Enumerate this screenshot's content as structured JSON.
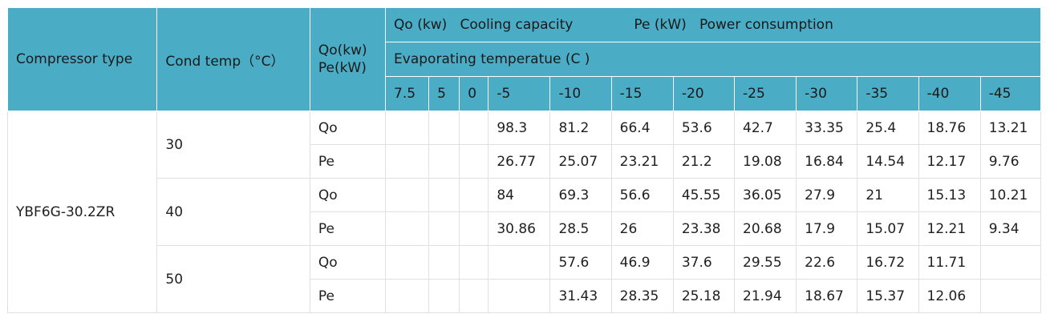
{
  "headers": {
    "compressor_type": "Compressor type",
    "cond_temp": "Cond temp（°C）",
    "qo_label": "Qo(kw)",
    "pe_label": "Pe(kW)",
    "legend_qo": "Qo (kw)   Cooling capacity",
    "legend_pe": "Pe (kW)   Power consumption",
    "evap_temp": "Evaporating temperatue (C )",
    "evap_values": [
      "7.5",
      "5",
      "0",
      "-5",
      "-10",
      "-15",
      "-20",
      "-25",
      "-30",
      "-35",
      "-40",
      "-45"
    ]
  },
  "compressor": "YBF6G-30.2ZR",
  "groups": [
    {
      "cond": "30",
      "rows": [
        {
          "label": "Qo",
          "values": [
            "",
            "",
            "",
            "98.3",
            "81.2",
            "66.4",
            "53.6",
            "42.7",
            "33.35",
            "25.4",
            "18.76",
            "13.21"
          ]
        },
        {
          "label": "Pe",
          "values": [
            "",
            "",
            "",
            "26.77",
            "25.07",
            "23.21",
            "21.2",
            "19.08",
            "16.84",
            "14.54",
            "12.17",
            "9.76"
          ]
        }
      ]
    },
    {
      "cond": "40",
      "rows": [
        {
          "label": "Qo",
          "values": [
            "",
            "",
            "",
            "84",
            "69.3",
            "56.6",
            "45.55",
            "36.05",
            "27.9",
            "21",
            "15.13",
            "10.21"
          ]
        },
        {
          "label": "Pe",
          "values": [
            "",
            "",
            "",
            "30.86",
            "28.5",
            "26",
            "23.38",
            "20.68",
            "17.9",
            "15.07",
            "12.21",
            "9.34"
          ]
        }
      ]
    },
    {
      "cond": "50",
      "rows": [
        {
          "label": "Qo",
          "values": [
            "",
            "",
            "",
            "",
            "57.6",
            "46.9",
            "37.6",
            "29.55",
            "22.6",
            "16.72",
            "11.71",
            ""
          ]
        },
        {
          "label": "Pe",
          "values": [
            "",
            "",
            "",
            "",
            "31.43",
            "28.35",
            "25.18",
            "21.94",
            "18.67",
            "15.37",
            "12.06",
            ""
          ]
        }
      ]
    }
  ]
}
